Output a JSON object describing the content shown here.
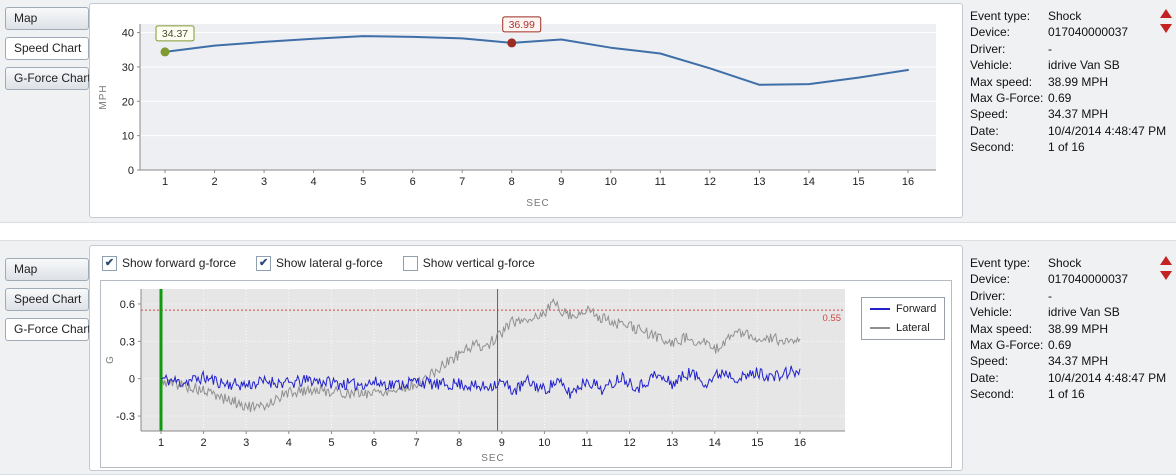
{
  "tabs": {
    "items": [
      "Map",
      "Speed Chart",
      "G-Force Chart"
    ]
  },
  "panels": {
    "top": {
      "selected_tab": "Speed Chart"
    },
    "bottom": {
      "selected_tab": "G-Force Chart"
    }
  },
  "info": {
    "rows": [
      {
        "label": "Event type:",
        "value": "Shock"
      },
      {
        "label": "Device:",
        "value": "017040000037"
      },
      {
        "label": "Driver:",
        "value": "-"
      },
      {
        "label": "Vehicle:",
        "value": "idrive Van SB"
      },
      {
        "label": "Max speed:",
        "value": "38.99 MPH"
      },
      {
        "label": "Max G-Force:",
        "value": "0.69"
      },
      {
        "label": "Speed:",
        "value": "34.37 MPH"
      },
      {
        "label": "Date:",
        "value": "10/4/2014 4:48:47 PM"
      },
      {
        "label": "Second:",
        "value": "1 of 16"
      }
    ]
  },
  "gforce_controls": [
    {
      "label": "Show forward g-force",
      "checked": true
    },
    {
      "label": "Show lateral g-force",
      "checked": true
    },
    {
      "label": "Show vertical g-force",
      "checked": false
    }
  ],
  "chart_data": [
    {
      "id": "speed",
      "type": "line",
      "title": "",
      "xlabel": "SEC",
      "ylabel": "MPH",
      "x": [
        1,
        2,
        3,
        4,
        5,
        6,
        7,
        8,
        9,
        10,
        11,
        12,
        13,
        14,
        15,
        16
      ],
      "values": [
        34.37,
        36.2,
        37.3,
        38.2,
        38.99,
        38.75,
        38.3,
        36.99,
        38.0,
        35.6,
        33.9,
        29.6,
        24.8,
        25.0,
        26.9,
        29.1
      ],
      "yticks": [
        0,
        10,
        20,
        30,
        40
      ],
      "ylim": [
        0,
        42.5
      ],
      "line_color": "#3f6fa8",
      "plot_bg": "#edeff3",
      "markers": [
        {
          "x": 1,
          "y": 34.37,
          "label": "34.37",
          "color": "#7f9a30",
          "text_color": "#4c4c2e",
          "box_bg": "#fdfdf2"
        },
        {
          "x": 8,
          "y": 36.99,
          "label": "36.99",
          "color": "#9c2b21",
          "text_color": "#b03030",
          "box_bg": "#fdf5f2"
        }
      ]
    },
    {
      "id": "gforce",
      "type": "line",
      "title": "",
      "xlabel": "SEC",
      "ylabel": "G",
      "xticks": [
        1,
        2,
        3,
        4,
        5,
        6,
        7,
        8,
        9,
        10,
        11,
        12,
        13,
        14,
        15,
        16
      ],
      "yticks": [
        -0.3,
        0,
        0.3,
        0.6
      ],
      "ylim": [
        -0.42,
        0.72
      ],
      "plot_bg": "#e6e6e6",
      "threshold": {
        "y": 0.55,
        "label": "0.55",
        "color": "#d04545"
      },
      "cursors": [
        {
          "x": 1,
          "color": "#0f9a0f",
          "width": 3
        },
        {
          "x": 8.9,
          "color": "#cc3838",
          "width": 1
        }
      ],
      "legend": [
        {
          "name": "Forward",
          "color": "#2222cc"
        },
        {
          "name": "Lateral",
          "color": "#909090"
        }
      ],
      "series": [
        {
          "name": "Forward",
          "color": "#2222cc",
          "noise": 0.05,
          "seed": 11,
          "keypoints": [
            [
              1,
              0
            ],
            [
              1.5,
              -0.03
            ],
            [
              2,
              0.01
            ],
            [
              2.5,
              -0.04
            ],
            [
              3,
              -0.05
            ],
            [
              3.5,
              -0.02
            ],
            [
              4,
              -0.04
            ],
            [
              4.5,
              -0.01
            ],
            [
              5,
              -0.03
            ],
            [
              5.5,
              -0.05
            ],
            [
              6,
              -0.03
            ],
            [
              6.5,
              -0.05
            ],
            [
              7,
              -0.02
            ],
            [
              7.5,
              -0.05
            ],
            [
              8,
              -0.04
            ],
            [
              8.5,
              -0.07
            ],
            [
              9,
              -0.03
            ],
            [
              9.3,
              -0.1
            ],
            [
              9.6,
              -0.02
            ],
            [
              10,
              -0.09
            ],
            [
              10.3,
              -0.02
            ],
            [
              10.6,
              -0.12
            ],
            [
              11,
              -0.01
            ],
            [
              11.4,
              -0.09
            ],
            [
              11.8,
              0.02
            ],
            [
              12.2,
              -0.07
            ],
            [
              12.6,
              0.03
            ],
            [
              13,
              -0.04
            ],
            [
              13.4,
              0.05
            ],
            [
              13.8,
              -0.03
            ],
            [
              14.2,
              0.06
            ],
            [
              14.6,
              0
            ],
            [
              15,
              0.05
            ],
            [
              15.4,
              0.01
            ],
            [
              15.8,
              0.06
            ],
            [
              16,
              0.04
            ]
          ]
        },
        {
          "name": "Lateral",
          "color": "#909090",
          "noise": 0.045,
          "seed": 5,
          "keypoints": [
            [
              1,
              -0.02
            ],
            [
              1.5,
              -0.05
            ],
            [
              2,
              -0.1
            ],
            [
              2.5,
              -0.16
            ],
            [
              3,
              -0.22
            ],
            [
              3.3,
              -0.24
            ],
            [
              3.6,
              -0.18
            ],
            [
              4,
              -0.11
            ],
            [
              4.5,
              -0.09
            ],
            [
              5,
              -0.1
            ],
            [
              5.5,
              -0.12
            ],
            [
              6,
              -0.11
            ],
            [
              6.5,
              -0.09
            ],
            [
              7,
              -0.04
            ],
            [
              7.3,
              0.02
            ],
            [
              7.6,
              0.1
            ],
            [
              8,
              0.2
            ],
            [
              8.3,
              0.27
            ],
            [
              8.6,
              0.26
            ],
            [
              8.9,
              0.33
            ],
            [
              9.2,
              0.45
            ],
            [
              9.5,
              0.47
            ],
            [
              9.8,
              0.5
            ],
            [
              10,
              0.52
            ],
            [
              10.2,
              0.62
            ],
            [
              10.4,
              0.55
            ],
            [
              10.7,
              0.5
            ],
            [
              11,
              0.55
            ],
            [
              11.3,
              0.5
            ],
            [
              11.6,
              0.45
            ],
            [
              12,
              0.42
            ],
            [
              12.3,
              0.38
            ],
            [
              12.7,
              0.33
            ],
            [
              13,
              0.28
            ],
            [
              13.3,
              0.33
            ],
            [
              13.7,
              0.3
            ],
            [
              14,
              0.22
            ],
            [
              14.3,
              0.33
            ],
            [
              14.6,
              0.38
            ],
            [
              15,
              0.3
            ],
            [
              15.3,
              0.33
            ],
            [
              15.6,
              0.3
            ],
            [
              16,
              0.28
            ]
          ]
        }
      ]
    }
  ]
}
